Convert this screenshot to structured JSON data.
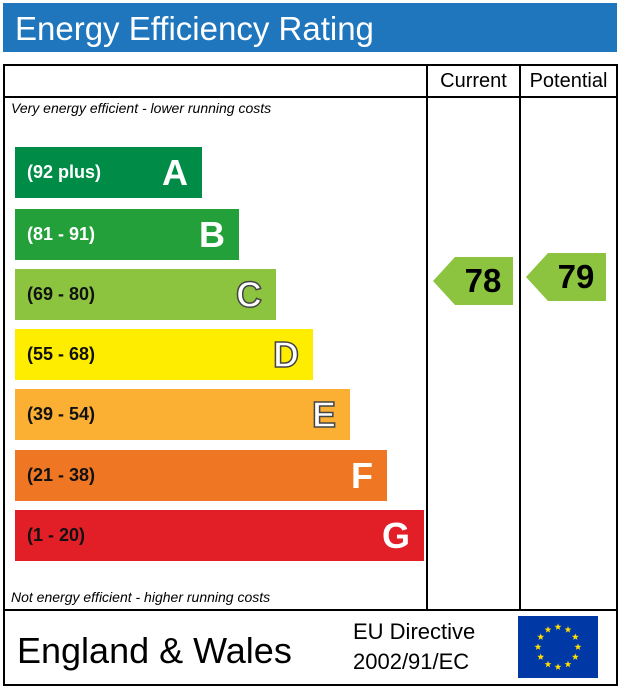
{
  "header": {
    "title": "Energy Efficiency Rating"
  },
  "columns": {
    "current": "Current",
    "potential": "Potential"
  },
  "notes": {
    "top": "Very energy efficient - lower running costs",
    "bottom": "Not energy efficient - higher running costs"
  },
  "footer": {
    "region": "England & Wales",
    "directive_line1": "EU Directive",
    "directive_line2": "2002/91/EC"
  },
  "colors": {
    "title_bar": "#1f76bd",
    "A": "#008c46",
    "B": "#23a03a",
    "C": "#8cc43f",
    "D": "#ffed00",
    "E": "#fbb034",
    "F": "#ef7724",
    "G": "#e21f26",
    "current_arrow": "#8cc43f",
    "potential_arrow": "#8cc43f",
    "eu_flag": "#0039a6",
    "eu_stars": "#ffdd00"
  },
  "chart_data": {
    "type": "bar",
    "title": "Energy Efficiency Rating",
    "categories": [
      "A",
      "B",
      "C",
      "D",
      "E",
      "F",
      "G"
    ],
    "ranges": [
      "(92 plus)",
      "(81 - 91)",
      "(69 - 80)",
      "(55 - 68)",
      "(39 - 54)",
      "(21 - 38)",
      "(1 - 20)"
    ],
    "current": 78,
    "potential": 79,
    "current_band": "C",
    "potential_band": "C"
  }
}
